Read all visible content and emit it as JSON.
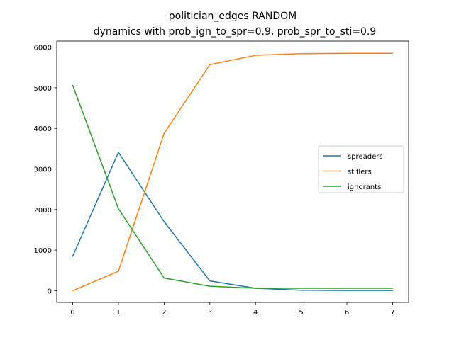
{
  "chart_data": {
    "type": "line",
    "title": "politician_edges RANDOM",
    "subtitle": "dynamics with prob_ign_to_spr=0.9, prob_spr_to_sti=0.9",
    "xlabel": "",
    "ylabel": "",
    "x": [
      0,
      1,
      2,
      3,
      4,
      5,
      6,
      7
    ],
    "xlim": [
      -0.35,
      7.35
    ],
    "ylim": [
      -290,
      6150
    ],
    "xticks": [
      0,
      1,
      2,
      3,
      4,
      5,
      6,
      7
    ],
    "yticks": [
      0,
      1000,
      2000,
      3000,
      4000,
      5000,
      6000
    ],
    "grid": false,
    "legend_position": "center-right",
    "series": [
      {
        "name": "spreaders",
        "color": "#1f77b4",
        "values": [
          850,
          3410,
          1700,
          240,
          60,
          10,
          5,
          5
        ]
      },
      {
        "name": "stiflers",
        "color": "#ff7f0e",
        "values": [
          0,
          480,
          3880,
          5570,
          5800,
          5840,
          5850,
          5850
        ]
      },
      {
        "name": "ignorants",
        "color": "#2ca02c",
        "values": [
          5060,
          2020,
          310,
          110,
          60,
          60,
          60,
          60
        ]
      }
    ]
  }
}
